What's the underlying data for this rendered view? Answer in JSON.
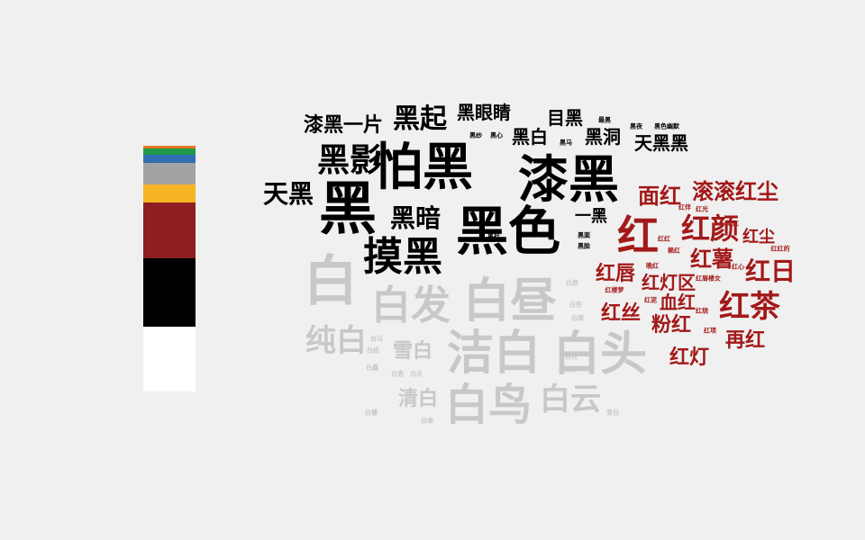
{
  "palette": [
    {
      "name": "orange",
      "color": "#e8761f"
    },
    {
      "name": "green",
      "color": "#1f9a4b"
    },
    {
      "name": "blue",
      "color": "#2f6fb0"
    },
    {
      "name": "gray",
      "color": "#a3a3a3"
    },
    {
      "name": "yellow",
      "color": "#f6b523"
    },
    {
      "name": "red",
      "color": "#8e1e21"
    },
    {
      "name": "black",
      "color": "#000000"
    },
    {
      "name": "white",
      "color": "#ffffff"
    }
  ],
  "colors": {
    "black": "#000000",
    "red": "#a31919",
    "white": "#c8c8c8"
  },
  "words": [
    {
      "text": "黑",
      "group": "black"
    },
    {
      "text": "怕黑",
      "group": "black"
    },
    {
      "text": "漆黑",
      "group": "black"
    },
    {
      "text": "黑色",
      "group": "black"
    },
    {
      "text": "摸黑",
      "group": "black"
    },
    {
      "text": "黑影",
      "group": "black"
    },
    {
      "text": "天黑",
      "group": "black"
    },
    {
      "text": "黑暗",
      "group": "black"
    },
    {
      "text": "黑起",
      "group": "black"
    },
    {
      "text": "漆黑一片",
      "group": "black"
    },
    {
      "text": "黑眼睛",
      "group": "black"
    },
    {
      "text": "目黑",
      "group": "black"
    },
    {
      "text": "黑白",
      "group": "black"
    },
    {
      "text": "黑洞",
      "group": "black"
    },
    {
      "text": "天黑黑",
      "group": "black"
    },
    {
      "text": "一黑",
      "group": "black"
    },
    {
      "text": "最黑",
      "group": "black"
    },
    {
      "text": "黑夜",
      "group": "black"
    },
    {
      "text": "黑色幽默",
      "group": "black"
    },
    {
      "text": "黑纱",
      "group": "black"
    },
    {
      "text": "黑心",
      "group": "black"
    },
    {
      "text": "黑马",
      "group": "black"
    },
    {
      "text": "黑面",
      "group": "black"
    },
    {
      "text": "黑脸",
      "group": "black"
    },
    {
      "text": "黑社",
      "group": "black"
    },
    {
      "text": "红",
      "group": "red"
    },
    {
      "text": "红颜",
      "group": "red"
    },
    {
      "text": "滚滚红尘",
      "group": "red"
    },
    {
      "text": "面红",
      "group": "red"
    },
    {
      "text": "红尘",
      "group": "red"
    },
    {
      "text": "红薯",
      "group": "red"
    },
    {
      "text": "红日",
      "group": "red"
    },
    {
      "text": "红唇",
      "group": "red"
    },
    {
      "text": "红灯区",
      "group": "red"
    },
    {
      "text": "红茶",
      "group": "red"
    },
    {
      "text": "血红",
      "group": "red"
    },
    {
      "text": "红丝",
      "group": "red"
    },
    {
      "text": "粉红",
      "group": "red"
    },
    {
      "text": "再红",
      "group": "red"
    },
    {
      "text": "红灯",
      "group": "red"
    },
    {
      "text": "红伴",
      "group": "red"
    },
    {
      "text": "红光",
      "group": "red"
    },
    {
      "text": "染红",
      "group": "red"
    },
    {
      "text": "红红",
      "group": "red"
    },
    {
      "text": "晚红",
      "group": "red"
    },
    {
      "text": "红心",
      "group": "red"
    },
    {
      "text": "红红的",
      "group": "red"
    },
    {
      "text": "赖红",
      "group": "red"
    },
    {
      "text": "红唇楼女",
      "group": "red"
    },
    {
      "text": "红楼梦",
      "group": "red"
    },
    {
      "text": "红泥",
      "group": "red"
    },
    {
      "text": "红烧",
      "group": "red"
    },
    {
      "text": "红项",
      "group": "red"
    },
    {
      "text": "白",
      "group": "white"
    },
    {
      "text": "白发",
      "group": "white"
    },
    {
      "text": "白昼",
      "group": "white"
    },
    {
      "text": "洁白",
      "group": "white"
    },
    {
      "text": "白头",
      "group": "white"
    },
    {
      "text": "纯白",
      "group": "white"
    },
    {
      "text": "雪白",
      "group": "white"
    },
    {
      "text": "白鸟",
      "group": "white"
    },
    {
      "text": "白云",
      "group": "white"
    },
    {
      "text": "清白",
      "group": "white"
    },
    {
      "text": "白原",
      "group": "white"
    },
    {
      "text": "白色",
      "group": "white"
    },
    {
      "text": "白雨",
      "group": "white"
    },
    {
      "text": "白马",
      "group": "white"
    },
    {
      "text": "白纸",
      "group": "white"
    },
    {
      "text": "白鑫",
      "group": "white"
    },
    {
      "text": "白逃",
      "group": "white"
    },
    {
      "text": "白天",
      "group": "white"
    },
    {
      "text": "白兆",
      "group": "white"
    },
    {
      "text": "白雪",
      "group": "white"
    },
    {
      "text": "白薯",
      "group": "white"
    },
    {
      "text": "白金",
      "group": "white"
    },
    {
      "text": "变白",
      "group": "white"
    }
  ]
}
